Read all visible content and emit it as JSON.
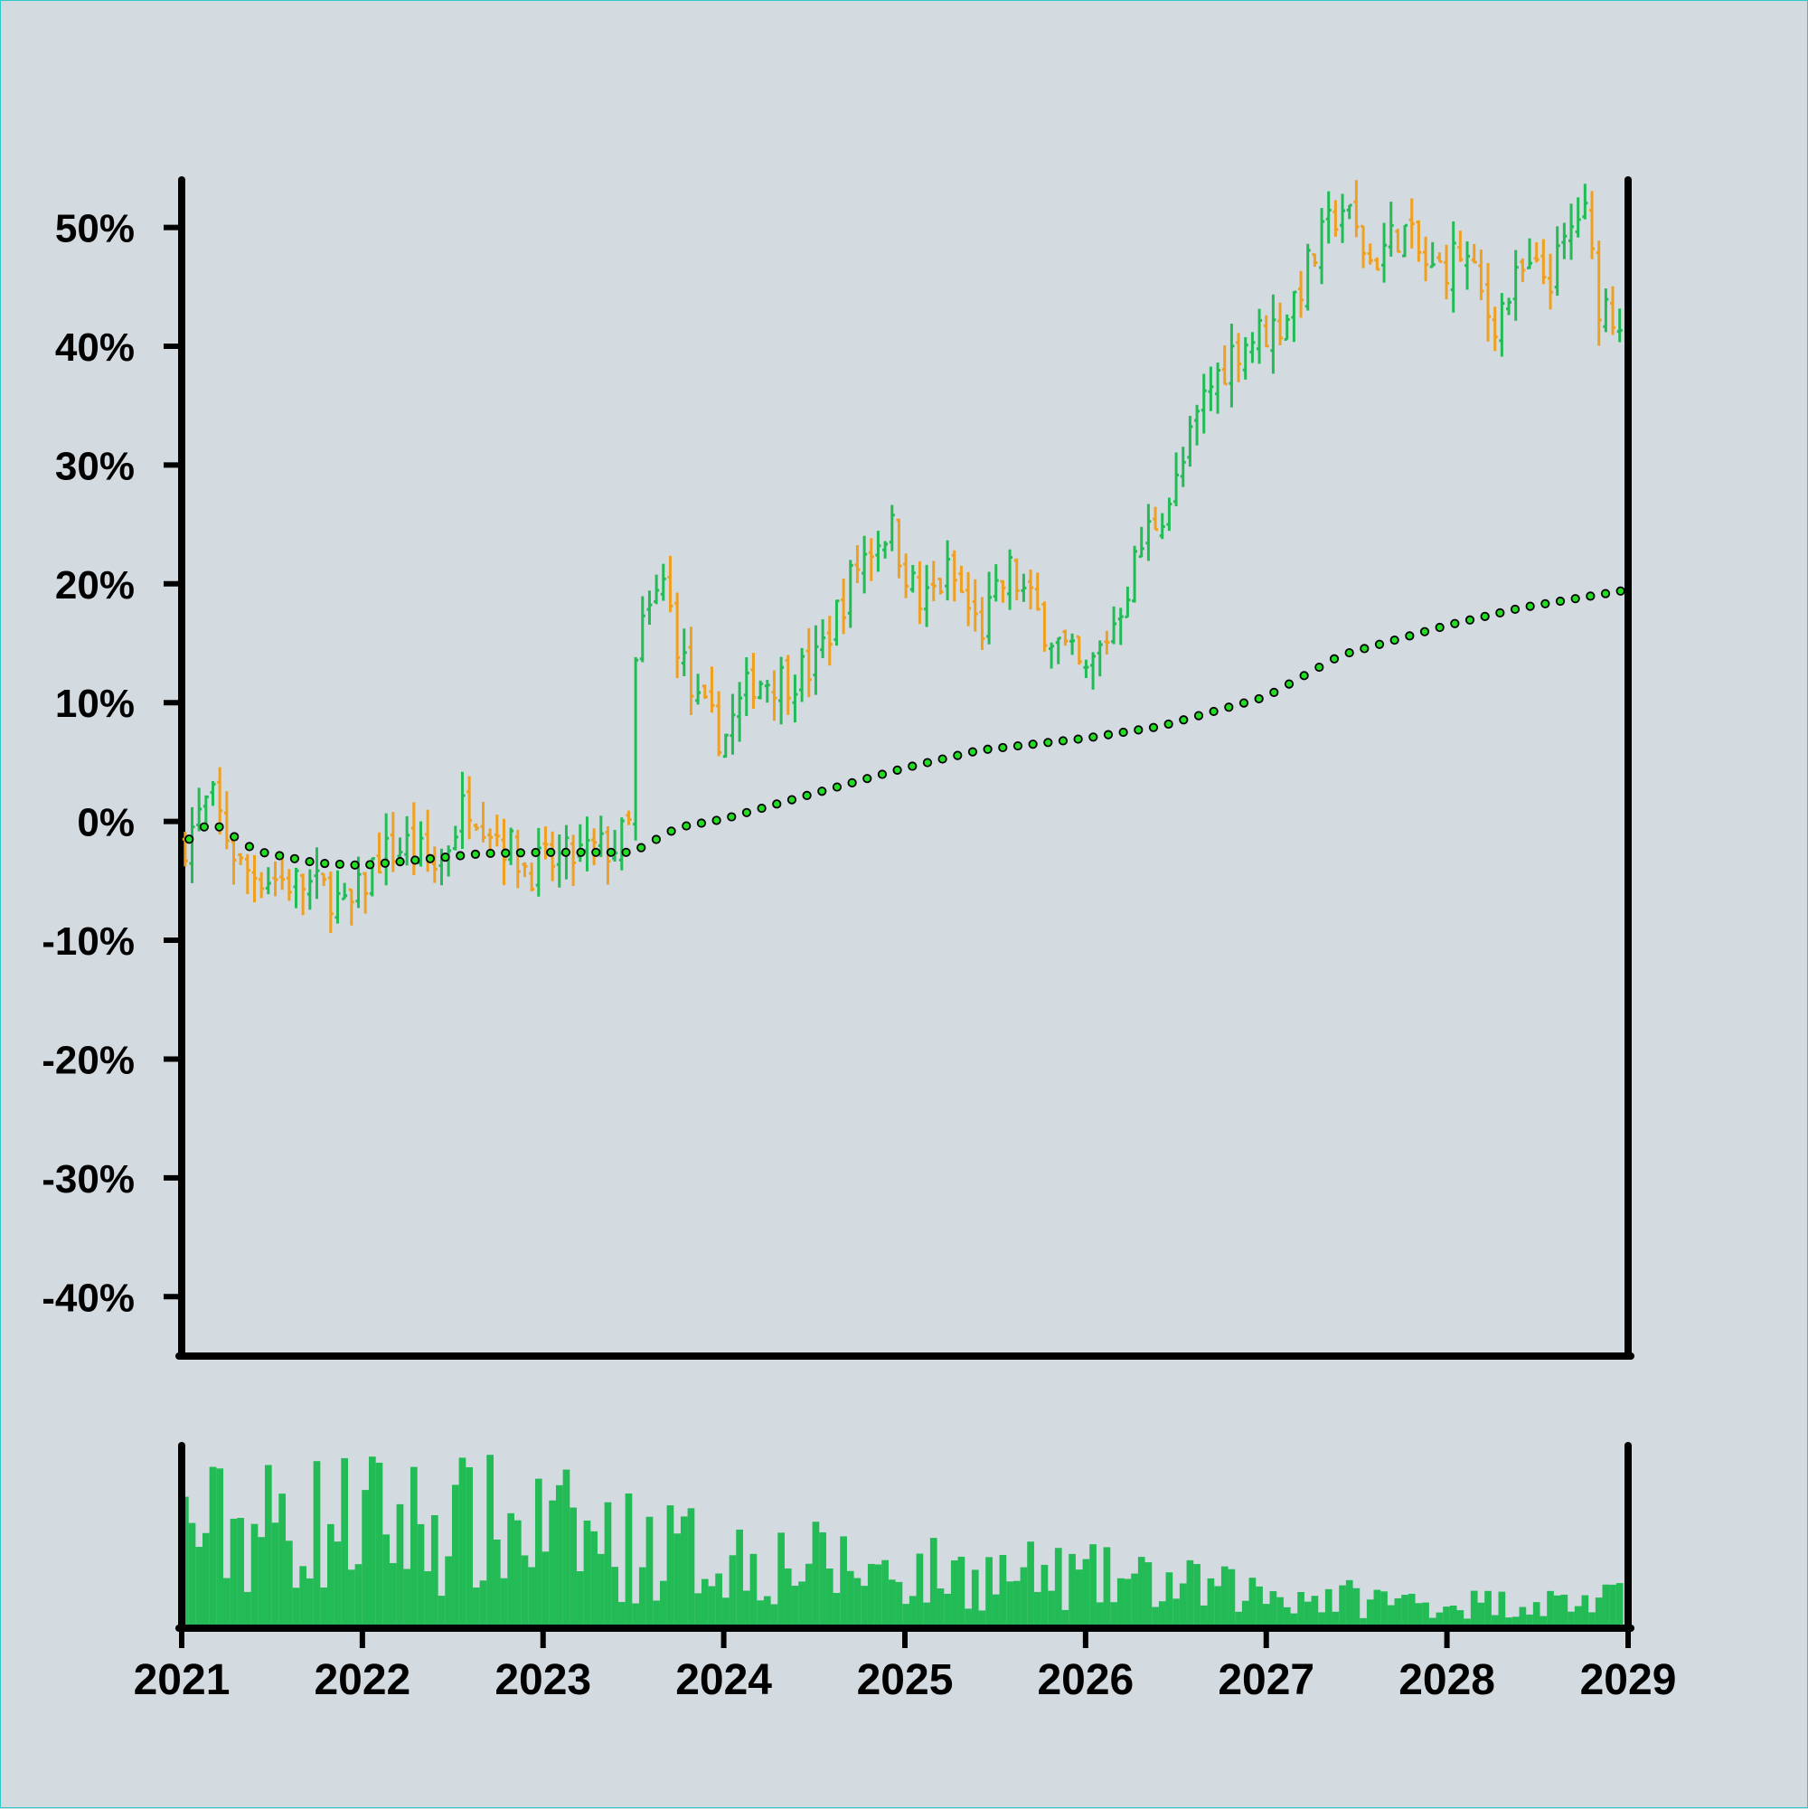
{
  "chart_data": {
    "type": "ohlc",
    "title": "",
    "xlabel": "",
    "ylabel": "",
    "x_axis": {
      "type": "date",
      "range": [
        "2021-01-01",
        "2029-01-01"
      ],
      "tick_labels": [
        "2021",
        "2022",
        "2023",
        "2024",
        "2025",
        "2026",
        "2027",
        "2028",
        "2029"
      ]
    },
    "y_axis": {
      "unit": "percent",
      "range": [
        -45,
        54
      ],
      "ticks": [
        50,
        40,
        30,
        20,
        10,
        0,
        -10,
        -20,
        -30,
        -40
      ],
      "tick_labels": [
        "50%",
        "40%",
        "30%",
        "20%",
        "10%",
        "0%",
        "-10%",
        "-20%",
        "-30%",
        "-40%"
      ]
    },
    "grid": false,
    "legend": "none",
    "colors": {
      "up": "#22bb55",
      "down": "#f0a020",
      "trend_marker": "#22dd22",
      "volume": "#22bb55",
      "axis": "#000000",
      "background": "#d3dbe0"
    },
    "close_anchors": [
      [
        "2021-01-01",
        -2
      ],
      [
        "2021-03-01",
        2
      ],
      [
        "2021-05-01",
        -4
      ],
      [
        "2021-08-01",
        -5
      ],
      [
        "2021-11-01",
        -6
      ],
      [
        "2021-12-01",
        -8
      ],
      [
        "2022-02-01",
        -3
      ],
      [
        "2022-04-01",
        -2
      ],
      [
        "2022-06-01",
        -4
      ],
      [
        "2022-08-01",
        2
      ],
      [
        "2022-10-01",
        -1
      ],
      [
        "2022-12-01",
        -4
      ],
      [
        "2023-03-01",
        -3
      ],
      [
        "2023-06-01",
        -2
      ],
      [
        "2023-07-01",
        0
      ],
      [
        "2023-07-08",
        15
      ],
      [
        "2023-09-01",
        20
      ],
      [
        "2023-11-01",
        10
      ],
      [
        "2024-01-01",
        7
      ],
      [
        "2024-03-01",
        12
      ],
      [
        "2024-05-01",
        12
      ],
      [
        "2024-07-01",
        13
      ],
      [
        "2024-10-01",
        22
      ],
      [
        "2024-12-01",
        25
      ],
      [
        "2025-02-01",
        18
      ],
      [
        "2025-04-01",
        21
      ],
      [
        "2025-06-01",
        16
      ],
      [
        "2025-08-01",
        21
      ],
      [
        "2025-10-01",
        17
      ],
      [
        "2026-01-01",
        12
      ],
      [
        "2026-03-01",
        17
      ],
      [
        "2026-05-01",
        24
      ],
      [
        "2026-07-01",
        28
      ],
      [
        "2026-09-01",
        36
      ],
      [
        "2026-11-01",
        40
      ],
      [
        "2027-02-01",
        42
      ],
      [
        "2027-04-01",
        47
      ],
      [
        "2027-06-01",
        52
      ],
      [
        "2027-08-01",
        47
      ],
      [
        "2027-10-01",
        50
      ],
      [
        "2027-12-01",
        46
      ],
      [
        "2028-02-01",
        48
      ],
      [
        "2028-04-01",
        42
      ],
      [
        "2028-06-01",
        46
      ],
      [
        "2028-08-01",
        46
      ],
      [
        "2028-10-01",
        52
      ],
      [
        "2028-11-01",
        44
      ],
      [
        "2029-01-01",
        42
      ]
    ],
    "weeks_per_bar": 2,
    "trend_line": {
      "marker": "circle",
      "anchors": [
        [
          "2021-01-01",
          -2
        ],
        [
          "2021-03-01",
          0
        ],
        [
          "2021-06-01",
          -2.5
        ],
        [
          "2021-10-01",
          -3.5
        ],
        [
          "2022-01-01",
          -3.7
        ],
        [
          "2022-05-01",
          -3.2
        ],
        [
          "2022-09-01",
          -2.7
        ],
        [
          "2023-01-01",
          -2.6
        ],
        [
          "2023-07-01",
          -2.6
        ],
        [
          "2023-10-01",
          -0.5
        ],
        [
          "2024-01-01",
          0.2
        ],
        [
          "2024-06-01",
          2
        ],
        [
          "2025-01-01",
          4.5
        ],
        [
          "2025-06-01",
          6
        ],
        [
          "2026-01-01",
          7
        ],
        [
          "2026-06-01",
          8
        ],
        [
          "2027-01-01",
          10.5
        ],
        [
          "2027-06-01",
          14
        ],
        [
          "2028-01-01",
          16.5
        ],
        [
          "2028-06-01",
          18
        ],
        [
          "2029-01-01",
          19.5
        ]
      ]
    },
    "volume_level": [
      [
        "2021-01-01",
        0.55
      ],
      [
        "2022-01-01",
        0.6
      ],
      [
        "2023-01-01",
        0.55
      ],
      [
        "2023-07-01",
        0.45
      ],
      [
        "2024-01-01",
        0.4
      ],
      [
        "2025-01-01",
        0.3
      ],
      [
        "2026-01-01",
        0.27
      ],
      [
        "2027-01-01",
        0.18
      ],
      [
        "2028-01-01",
        0.12
      ],
      [
        "2029-01-01",
        0.14
      ]
    ]
  }
}
